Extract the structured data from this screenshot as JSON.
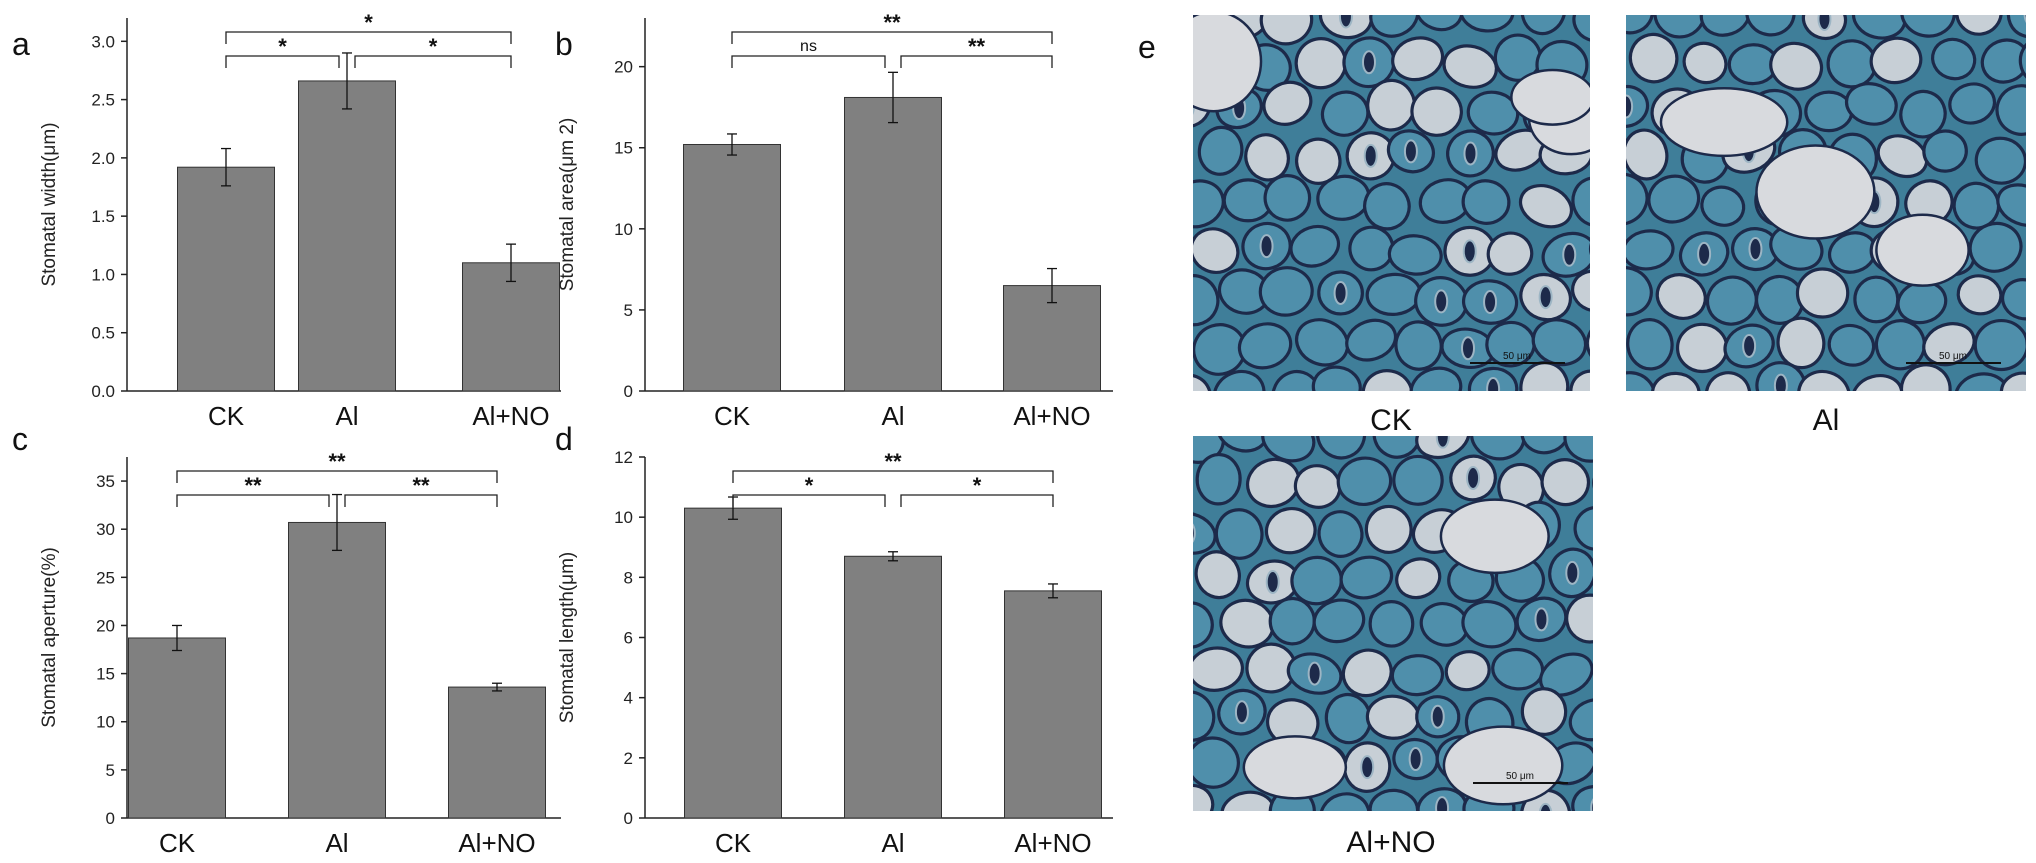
{
  "panel_letters": [
    "a",
    "b",
    "c",
    "d",
    "e"
  ],
  "chart_data": [
    {
      "panel": "a",
      "type": "bar",
      "categories": [
        "CK",
        "Al",
        "Al+NO"
      ],
      "values": [
        1.92,
        2.66,
        1.1
      ],
      "errors": [
        0.16,
        0.24,
        0.16
      ],
      "ylabel": "Stomatal width(μm)",
      "ylim": [
        0,
        3.2
      ],
      "yticks": [
        "0.0",
        "0.5",
        "1.0",
        "1.5",
        "2.0",
        "2.5",
        "3.0"
      ],
      "bar_color": "#808080",
      "significance": [
        {
          "from": 0,
          "to": 1,
          "label": "*",
          "level": 0
        },
        {
          "from": 1,
          "to": 2,
          "label": "*",
          "level": 0
        },
        {
          "from": 0,
          "to": 2,
          "label": "*",
          "level": 1
        }
      ]
    },
    {
      "panel": "b",
      "type": "bar",
      "categories": [
        "CK",
        "Al",
        "Al+NO"
      ],
      "values": [
        15.2,
        18.1,
        6.5
      ],
      "errors": [
        0.65,
        1.55,
        1.05
      ],
      "ylabel": "Stomatal area(μm 2)",
      "ylim": [
        0,
        23
      ],
      "yticks": [
        "0",
        "5",
        "10",
        "15",
        "20"
      ],
      "bar_color": "#808080",
      "significance": [
        {
          "from": 0,
          "to": 1,
          "label": "ns",
          "level": 0
        },
        {
          "from": 1,
          "to": 2,
          "label": "**",
          "level": 0
        },
        {
          "from": 0,
          "to": 2,
          "label": "**",
          "level": 1
        }
      ]
    },
    {
      "panel": "c",
      "type": "bar",
      "categories": [
        "CK",
        "Al",
        "Al+NO"
      ],
      "values": [
        18.7,
        30.7,
        13.6
      ],
      "errors": [
        1.3,
        2.9,
        0.4
      ],
      "ylabel": "Stomatal aperture(%)",
      "ylim": [
        0,
        37.5
      ],
      "yticks": [
        "0",
        "5",
        "10",
        "15",
        "20",
        "25",
        "30",
        "35"
      ],
      "bar_color": "#808080",
      "significance": [
        {
          "from": 0,
          "to": 1,
          "label": "**",
          "level": 0
        },
        {
          "from": 1,
          "to": 2,
          "label": "**",
          "level": 0
        },
        {
          "from": 0,
          "to": 2,
          "label": "**",
          "level": 1
        }
      ]
    },
    {
      "panel": "d",
      "type": "bar",
      "categories": [
        "CK",
        "Al",
        "Al+NO"
      ],
      "values": [
        10.3,
        8.7,
        7.55
      ],
      "errors": [
        0.37,
        0.15,
        0.23
      ],
      "ylabel": "Stomatal length(μm)",
      "ylim": [
        0,
        12
      ],
      "yticks": [
        "0",
        "2",
        "4",
        "6",
        "8",
        "10",
        "12"
      ],
      "bar_color": "#808080",
      "significance": [
        {
          "from": 0,
          "to": 1,
          "label": "*",
          "level": 0
        },
        {
          "from": 1,
          "to": 2,
          "label": "*",
          "level": 0
        },
        {
          "from": 0,
          "to": 2,
          "label": "**",
          "level": 1
        }
      ]
    }
  ],
  "micrographs": [
    {
      "label": "CK",
      "scale_bar": "50 μm"
    },
    {
      "label": "Al",
      "scale_bar": "50 μm"
    },
    {
      "label": "Al+NO",
      "scale_bar": "50 μm"
    }
  ],
  "colors": {
    "bar": "#808080",
    "axis": "#222222",
    "tissue_cell": "#3f7e99",
    "cell_wall": "#1d2a4a",
    "background_gap": "#d8dade"
  }
}
